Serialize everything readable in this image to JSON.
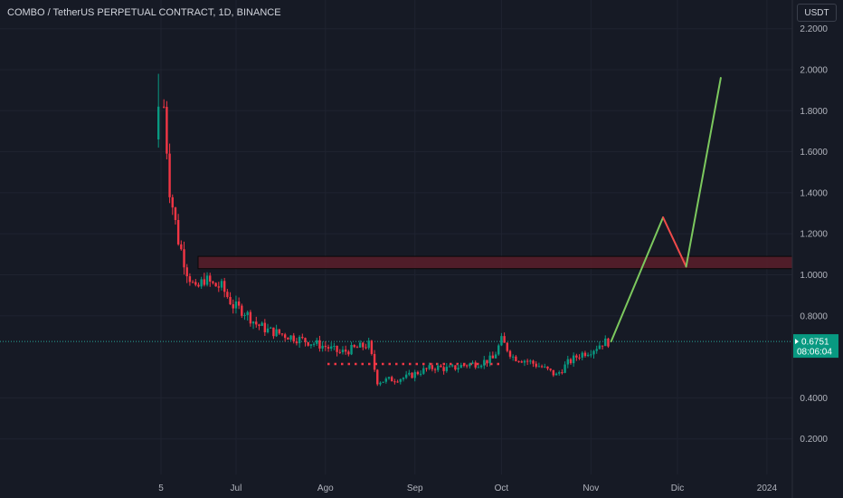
{
  "header": {
    "title": "COMBO / TetherUS PERPETUAL CONTRACT, 1D, BINANCE",
    "currency": "USDT"
  },
  "chart_data": {
    "type": "candlestick",
    "y_ticks": [
      "2.2000",
      "2.0000",
      "1.8000",
      "1.6000",
      "1.4000",
      "1.2000",
      "1.0000",
      "0.8000",
      "0.4000",
      "0.2000"
    ],
    "x_ticks": [
      "5",
      "Jul",
      "Ago",
      "Sep",
      "Oct",
      "Nov",
      "Dic",
      "2024"
    ],
    "ylim": [
      0.0,
      2.25
    ],
    "current_price": {
      "label": "0.6751",
      "value": 0.6751,
      "countdown": "08:06:04"
    },
    "resistance_zone": {
      "low": 1.03,
      "high": 1.09
    },
    "support_line": {
      "value": 0.565
    },
    "projection": [
      {
        "date": "2023-11-08",
        "price": 0.675
      },
      {
        "date": "2023-11-26",
        "price": 1.28
      },
      {
        "date": "2023-12-04",
        "price": 1.04
      },
      {
        "date": "2023-12-16",
        "price": 1.96
      }
    ],
    "close_series": [
      {
        "date": "2023-06-06",
        "price": 1.82
      },
      {
        "date": "2023-06-08",
        "price": 1.42
      },
      {
        "date": "2023-06-11",
        "price": 1.17
      },
      {
        "date": "2023-06-14",
        "price": 1.02
      },
      {
        "date": "2023-06-17",
        "price": 0.92
      },
      {
        "date": "2023-06-20",
        "price": 0.98
      },
      {
        "date": "2023-06-23",
        "price": 0.95
      },
      {
        "date": "2023-06-26",
        "price": 0.94
      },
      {
        "date": "2023-06-30",
        "price": 0.85
      },
      {
        "date": "2023-07-04",
        "price": 0.82
      },
      {
        "date": "2023-07-08",
        "price": 0.76
      },
      {
        "date": "2023-07-12",
        "price": 0.73
      },
      {
        "date": "2023-07-17",
        "price": 0.71
      },
      {
        "date": "2023-07-22",
        "price": 0.69
      },
      {
        "date": "2023-07-27",
        "price": 0.67
      },
      {
        "date": "2023-08-01",
        "price": 0.65
      },
      {
        "date": "2023-08-06",
        "price": 0.62
      },
      {
        "date": "2023-08-11",
        "price": 0.64
      },
      {
        "date": "2023-08-16",
        "price": 0.66
      },
      {
        "date": "2023-08-19",
        "price": 0.48
      },
      {
        "date": "2023-08-24",
        "price": 0.49
      },
      {
        "date": "2023-08-29",
        "price": 0.5
      },
      {
        "date": "2023-09-03",
        "price": 0.53
      },
      {
        "date": "2023-09-08",
        "price": 0.55
      },
      {
        "date": "2023-09-13",
        "price": 0.54
      },
      {
        "date": "2023-09-18",
        "price": 0.56
      },
      {
        "date": "2023-09-23",
        "price": 0.57
      },
      {
        "date": "2023-09-28",
        "price": 0.59
      },
      {
        "date": "2023-10-01",
        "price": 0.68
      },
      {
        "date": "2023-10-05",
        "price": 0.6
      },
      {
        "date": "2023-10-10",
        "price": 0.58
      },
      {
        "date": "2023-10-15",
        "price": 0.55
      },
      {
        "date": "2023-10-20",
        "price": 0.51
      },
      {
        "date": "2023-10-24",
        "price": 0.57
      },
      {
        "date": "2023-10-28",
        "price": 0.61
      },
      {
        "date": "2023-11-02",
        "price": 0.64
      },
      {
        "date": "2023-11-05",
        "price": 0.67
      },
      {
        "date": "2023-11-08",
        "price": 0.675
      }
    ]
  }
}
